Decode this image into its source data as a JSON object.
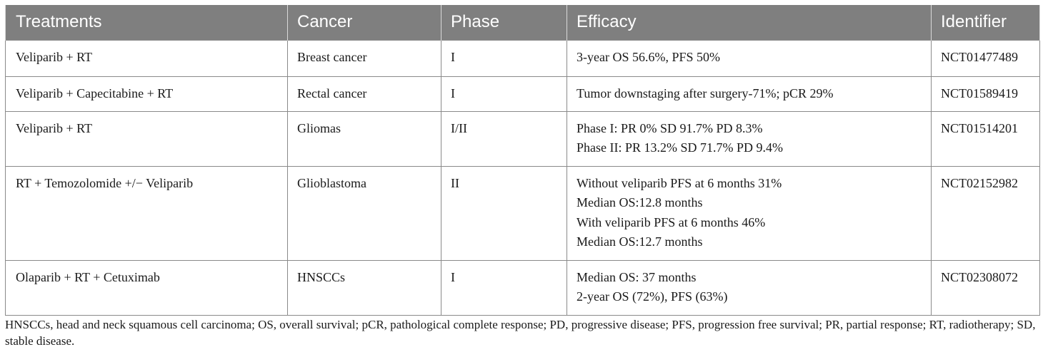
{
  "table": {
    "headers": [
      "Treatments",
      "Cancer",
      "Phase",
      "Efficacy",
      "Identifier"
    ],
    "rows": [
      {
        "treatment": "Veliparib + RT",
        "cancer": "Breast cancer",
        "phase": "I",
        "efficacy": [
          "3-year OS 56.6%, PFS 50%"
        ],
        "identifier": "NCT01477489"
      },
      {
        "treatment": "Veliparib + Capecitabine + RT",
        "cancer": "Rectal cancer",
        "phase": "I",
        "efficacy": [
          "Tumor downstaging after surgery-71%; pCR 29%"
        ],
        "identifier": "NCT01589419"
      },
      {
        "treatment": "Veliparib + RT",
        "cancer": "Gliomas",
        "phase": "I/II",
        "efficacy": [
          "Phase I: PR 0% SD 91.7% PD 8.3%",
          "Phase II: PR 13.2% SD 71.7% PD 9.4%"
        ],
        "identifier": "NCT01514201"
      },
      {
        "treatment": "RT + Temozolomide +/− Veliparib",
        "cancer": "Glioblastoma",
        "phase": "II",
        "efficacy": [
          "Without veliparib PFS at 6 months 31%",
          "Median OS:12.8 months",
          "With veliparib PFS at 6 months 46%",
          "Median OS:12.7 months"
        ],
        "identifier": "NCT02152982"
      },
      {
        "treatment": "Olaparib + RT + Cetuximab",
        "cancer": "HNSCCs",
        "phase": "I",
        "efficacy": [
          "Median OS: 37 months",
          "2-year OS (72%), PFS (63%)"
        ],
        "identifier": "NCT02308072"
      }
    ]
  },
  "footnote": "HNSCCs, head and neck squamous cell carcinoma; OS, overall survival; pCR, pathological complete response; PD, progressive disease; PFS, progression free survival; PR, partial response; RT, radiotherapy; SD, stable disease."
}
